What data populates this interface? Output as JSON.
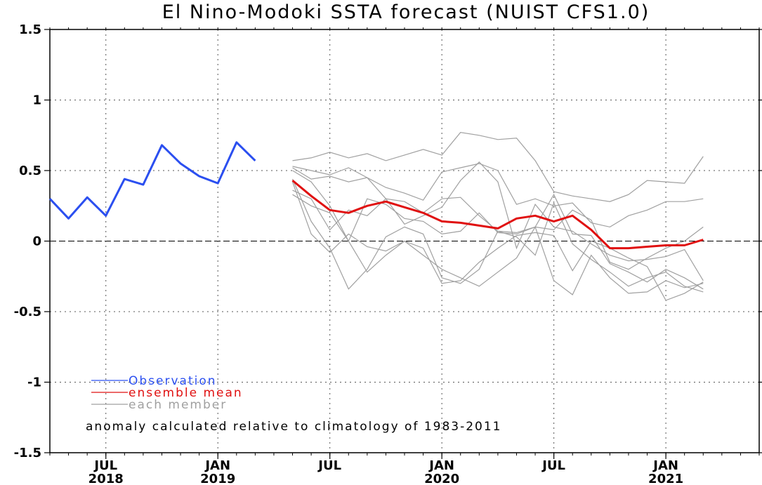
{
  "colors": {
    "observation": "#2b4ff0",
    "ensemble_mean": "#e01010",
    "member": "#a0a0a0",
    "grid": "#555555"
  },
  "chart_data": {
    "type": "line",
    "title": "El Nino-Modoki SSTA forecast (NUIST CFS1.0)",
    "note": "anomaly calculated relative to climatology of 1983-2011",
    "xlabel": "",
    "ylabel": "",
    "x_range": [
      "2018-04",
      "2021-06"
    ],
    "ylim": [
      -1.5,
      1.5
    ],
    "yticks": [
      -1.5,
      -1,
      -0.5,
      0,
      0.5,
      1,
      1.5
    ],
    "ytick_labels": [
      "-1.5",
      "-1",
      "-0.5",
      "0",
      "0.5",
      "1",
      "1.5"
    ],
    "xticks": [
      {
        "date": "2018-07",
        "label1": "JUL",
        "label2": "2018"
      },
      {
        "date": "2019-01",
        "label1": "JAN",
        "label2": "2019"
      },
      {
        "date": "2019-07",
        "label1": "JUL",
        "label2": ""
      },
      {
        "date": "2020-01",
        "label1": "JAN",
        "label2": "2020"
      },
      {
        "date": "2020-07",
        "label1": "JUL",
        "label2": ""
      },
      {
        "date": "2021-01",
        "label1": "JAN",
        "label2": "2021"
      }
    ],
    "grid": true,
    "legend_position": "bottom-left",
    "series": [
      {
        "name": "Observation",
        "role": "observation",
        "x": [
          "2018-04",
          "2018-05",
          "2018-06",
          "2018-07",
          "2018-08",
          "2018-09",
          "2018-10",
          "2018-11",
          "2018-12",
          "2019-01",
          "2019-02",
          "2019-03"
        ],
        "values": [
          0.3,
          0.16,
          0.31,
          0.18,
          0.44,
          0.4,
          0.68,
          0.55,
          0.46,
          0.41,
          0.7,
          0.57
        ]
      },
      {
        "name": "ensemble mean",
        "role": "ensemble_mean",
        "x": [
          "2019-05",
          "2019-06",
          "2019-07",
          "2019-08",
          "2019-09",
          "2019-10",
          "2019-11",
          "2019-12",
          "2020-01",
          "2020-02",
          "2020-03",
          "2020-04",
          "2020-05",
          "2020-06",
          "2020-07",
          "2020-08",
          "2020-09",
          "2020-10",
          "2020-11",
          "2020-12",
          "2021-01",
          "2021-02",
          "2021-03"
        ],
        "values": [
          0.43,
          0.32,
          0.22,
          0.2,
          0.25,
          0.28,
          0.24,
          0.2,
          0.14,
          0.13,
          0.11,
          0.09,
          0.16,
          0.18,
          0.14,
          0.18,
          0.08,
          -0.05,
          -0.05,
          -0.04,
          -0.03,
          -0.03,
          0.01
        ]
      },
      {
        "name": "each member",
        "role": "member",
        "members": [
          [
            0.57,
            0.59,
            0.63,
            0.59,
            0.62,
            0.57,
            0.61,
            0.65,
            0.61,
            0.77,
            0.75,
            0.72,
            0.73,
            0.57,
            0.35,
            0.32,
            0.3,
            0.28,
            0.33,
            0.43,
            0.42,
            0.41,
            0.6
          ],
          [
            0.53,
            0.5,
            0.47,
            0.52,
            0.45,
            0.38,
            0.34,
            0.29,
            0.49,
            0.52,
            0.55,
            0.5,
            0.26,
            0.3,
            0.25,
            0.27,
            0.13,
            0.1,
            0.18,
            0.22,
            0.28,
            0.28,
            0.3
          ],
          [
            0.52,
            0.44,
            0.46,
            0.42,
            0.45,
            0.3,
            0.28,
            0.2,
            0.3,
            0.31,
            0.18,
            0.07,
            0.06,
            0.1,
            0.08,
            0.22,
            0.15,
            -0.15,
            -0.2,
            -0.12,
            -0.05,
            0.0,
            0.1
          ],
          [
            0.36,
            0.3,
            0.08,
            0.22,
            0.18,
            0.3,
            0.12,
            0.18,
            0.24,
            0.43,
            0.56,
            0.42,
            -0.05,
            0.26,
            0.1,
            0.07,
            -0.02,
            -0.1,
            -0.14,
            -0.13,
            -0.11,
            -0.06,
            -0.28
          ],
          [
            0.5,
            0.42,
            0.25,
            0.0,
            0.3,
            0.26,
            0.16,
            0.14,
            0.05,
            0.07,
            0.2,
            0.06,
            0.05,
            0.1,
            0.33,
            0.05,
            0.04,
            -0.16,
            -0.22,
            -0.29,
            -0.2,
            -0.26,
            -0.34
          ],
          [
            0.44,
            0.14,
            -0.05,
            -0.34,
            -0.2,
            0.03,
            0.1,
            0.05,
            -0.26,
            -0.3,
            -0.2,
            0.07,
            0.03,
            -0.1,
            0.27,
            -0.02,
            -0.13,
            -0.22,
            -0.32,
            -0.26,
            -0.22,
            -0.32,
            -0.36
          ],
          [
            0.33,
            0.25,
            0.2,
            0.0,
            -0.22,
            -0.1,
            0.0,
            -0.05,
            -0.3,
            -0.28,
            -0.15,
            -0.05,
            0.04,
            0.06,
            0.04,
            -0.21,
            0.0,
            -0.05,
            -0.12,
            -0.18,
            -0.42,
            -0.37,
            -0.29
          ],
          [
            0.42,
            0.05,
            -0.08,
            0.05,
            -0.04,
            -0.07,
            0.0,
            -0.1,
            -0.2,
            -0.26,
            -0.32,
            -0.22,
            -0.12,
            0.1,
            -0.28,
            -0.38,
            -0.1,
            -0.26,
            -0.37,
            -0.36,
            -0.28,
            -0.33,
            -0.3
          ]
        ]
      }
    ]
  }
}
